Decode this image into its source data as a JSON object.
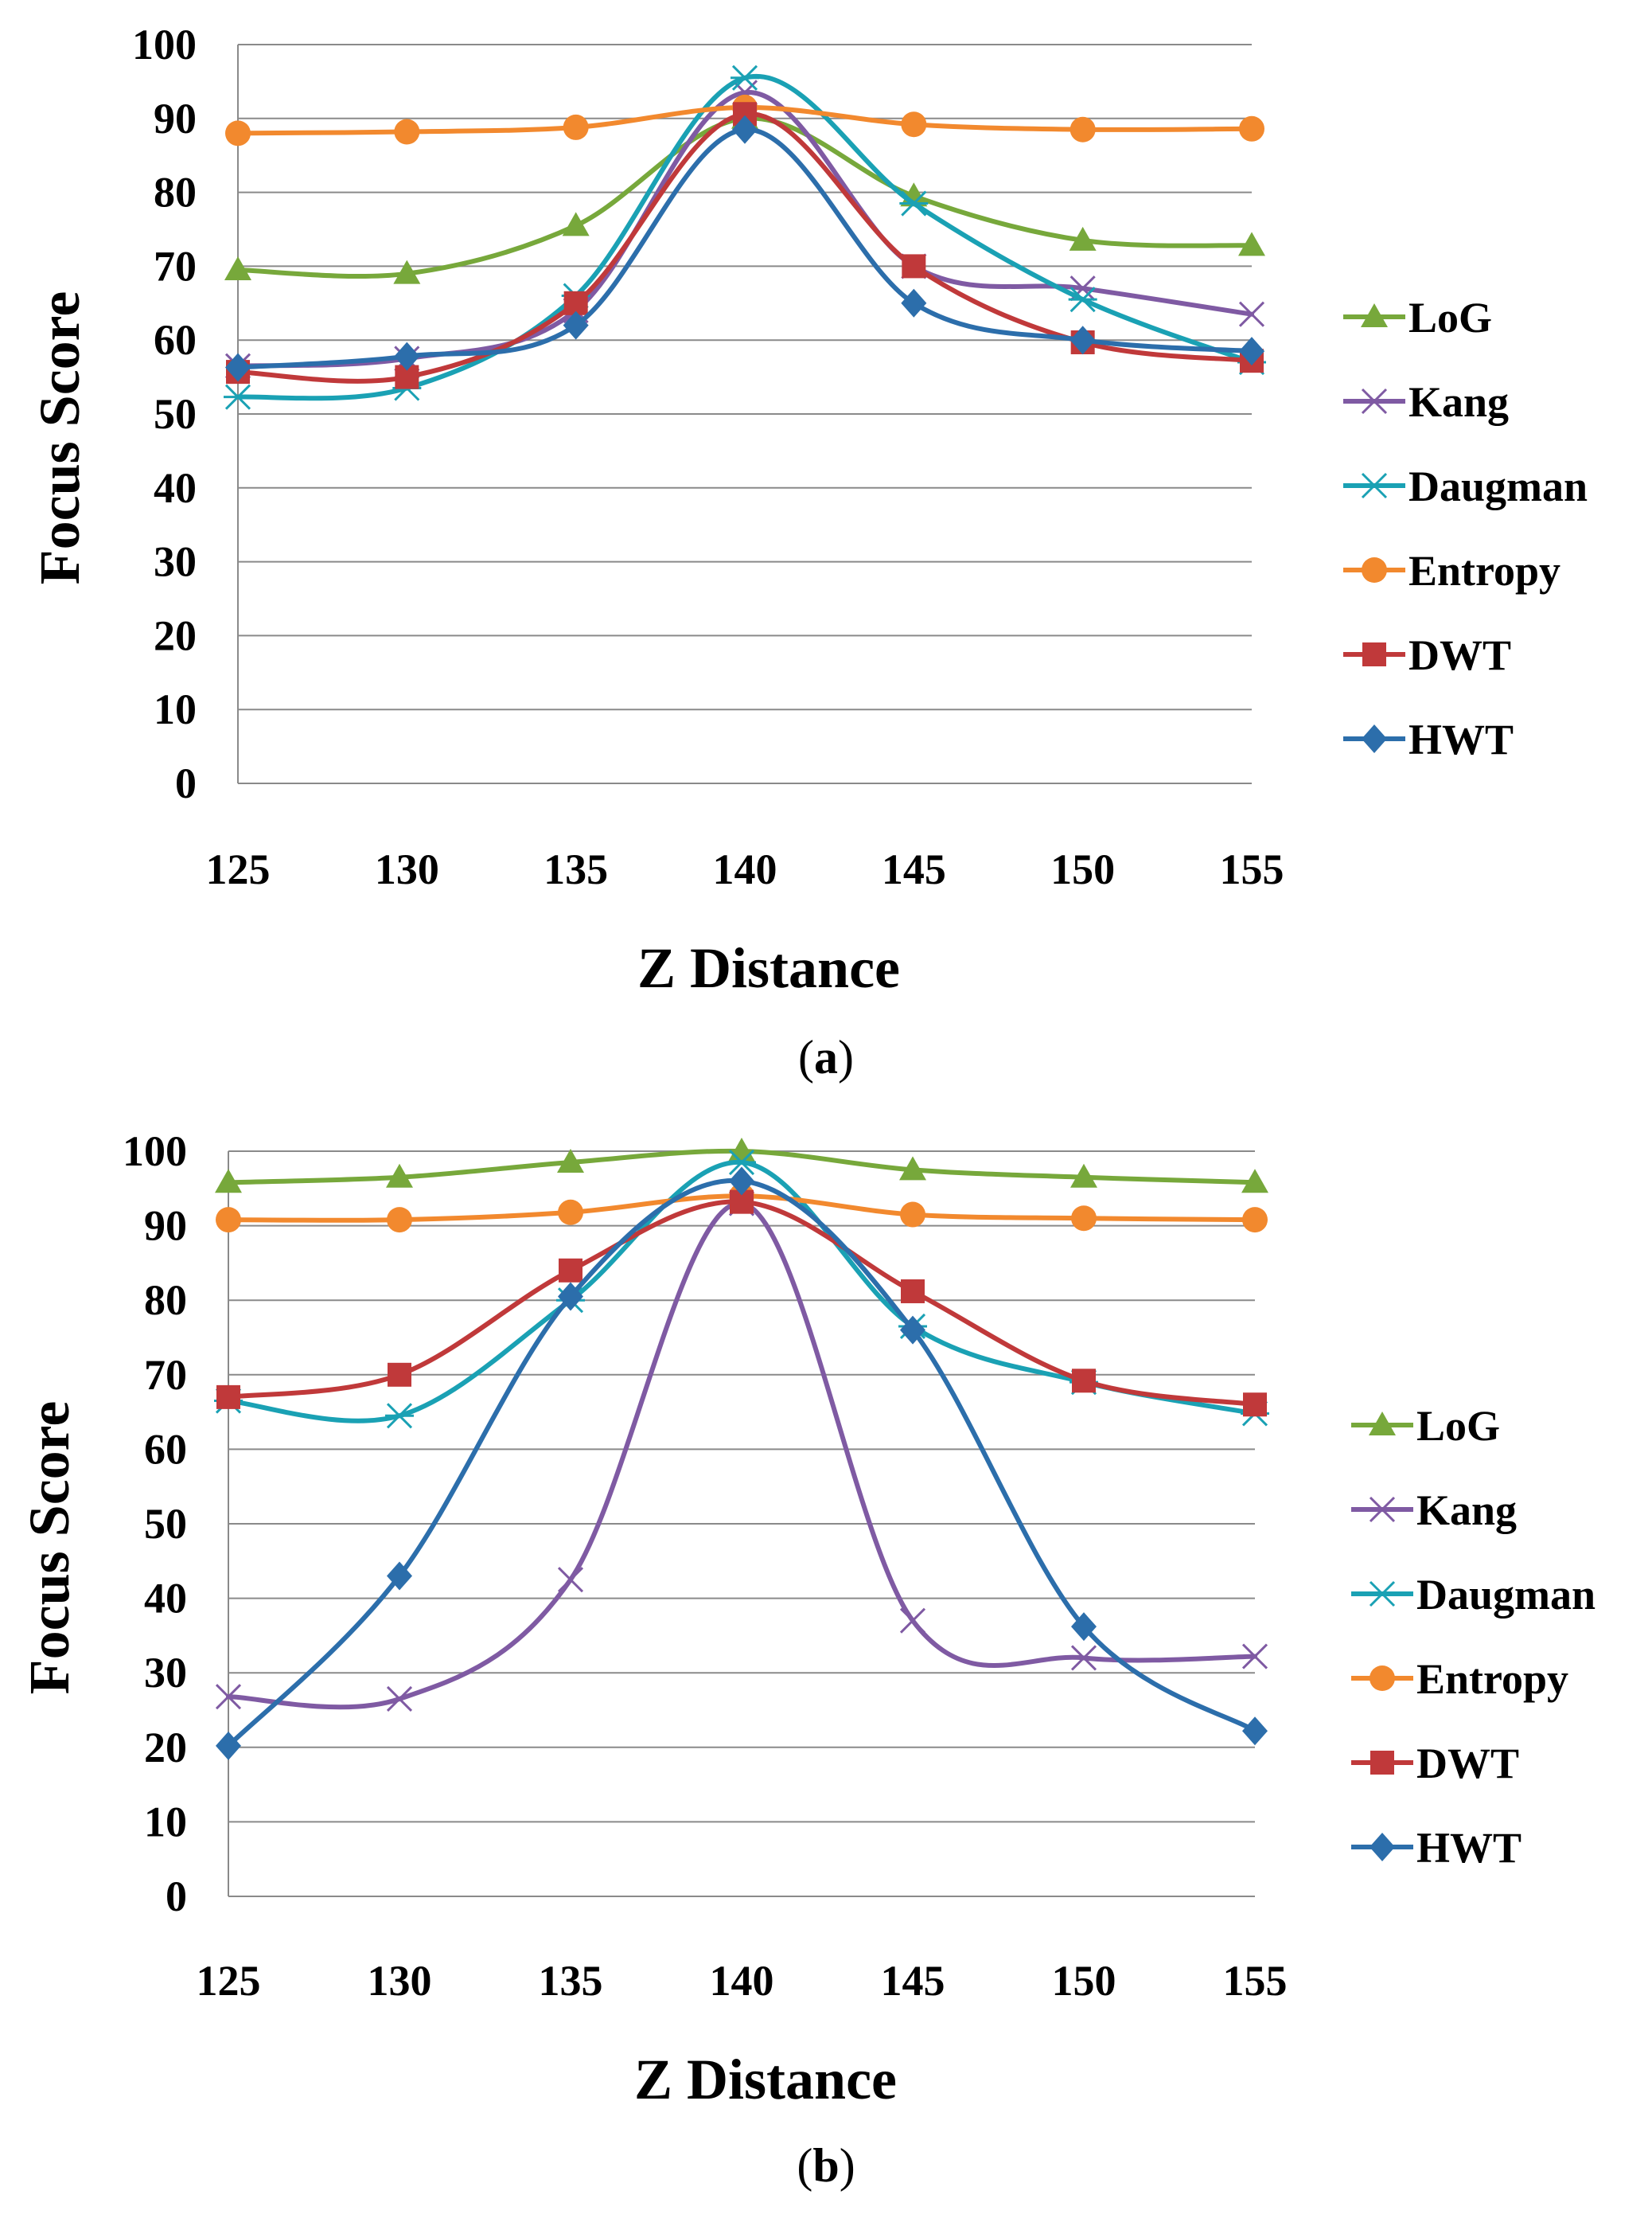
{
  "chart_data": [
    {
      "type": "line",
      "title": "",
      "caption": {
        "open": "(",
        "letter": "a",
        "close": ")"
      },
      "xlabel": "Z Distance",
      "ylabel": "Focus Score",
      "categories": [
        "125",
        "130",
        "135",
        "140",
        "145",
        "150",
        "155"
      ],
      "yticks": [
        "0",
        "10",
        "20",
        "30",
        "40",
        "50",
        "60",
        "70",
        "80",
        "90",
        "100"
      ],
      "ylim": [
        0,
        100
      ],
      "grid": true,
      "legend_position": "right",
      "series": [
        {
          "name": "LoG",
          "color": "#77a83b",
          "marker": "triangle",
          "values": [
            69.5,
            69,
            75.5,
            90,
            79.5,
            73.5,
            72.8
          ]
        },
        {
          "name": "Kang",
          "color": "#7f5aa3",
          "marker": "x",
          "values": [
            56.5,
            57.5,
            64,
            93.5,
            70,
            67,
            63.5
          ]
        },
        {
          "name": "Daugman",
          "color": "#1aa1b4",
          "marker": "star",
          "values": [
            52.3,
            53.5,
            66,
            95.5,
            78.5,
            65.5,
            57
          ]
        },
        {
          "name": "Entropy",
          "color": "#f2892e",
          "marker": "circle",
          "values": [
            88,
            88.2,
            88.8,
            91.5,
            89.2,
            88.5,
            88.6
          ]
        },
        {
          "name": "DWT",
          "color": "#c0393a",
          "marker": "square",
          "values": [
            55.7,
            55,
            65,
            90.6,
            70,
            59.7,
            57.2
          ]
        },
        {
          "name": "HWT",
          "color": "#2c6eab",
          "marker": "diamond",
          "values": [
            56.3,
            57.8,
            62,
            88.5,
            65,
            60,
            58.5
          ]
        }
      ]
    },
    {
      "type": "line",
      "title": "",
      "caption": {
        "open": "(",
        "letter": "b",
        "close": ")"
      },
      "xlabel": "Z Distance",
      "ylabel": "Focus Score",
      "categories": [
        "125",
        "130",
        "135",
        "140",
        "145",
        "150",
        "155"
      ],
      "yticks": [
        "0",
        "10",
        "20",
        "30",
        "40",
        "50",
        "60",
        "70",
        "80",
        "90",
        "100"
      ],
      "ylim": [
        0,
        100
      ],
      "grid": true,
      "legend_position": "right",
      "series": [
        {
          "name": "LoG",
          "color": "#77a83b",
          "marker": "triangle",
          "values": [
            95.8,
            96.5,
            98.5,
            100,
            97.5,
            96.5,
            95.8
          ]
        },
        {
          "name": "Kang",
          "color": "#7f5aa3",
          "marker": "x",
          "values": [
            26.8,
            26.5,
            42.5,
            93,
            37,
            32,
            32.2
          ]
        },
        {
          "name": "Daugman",
          "color": "#1aa1b4",
          "marker": "star",
          "values": [
            66.5,
            64.5,
            80,
            98.5,
            76.5,
            69,
            64.8
          ]
        },
        {
          "name": "Entropy",
          "color": "#f2892e",
          "marker": "circle",
          "values": [
            90.8,
            90.8,
            91.8,
            94,
            91.5,
            91,
            90.8
          ]
        },
        {
          "name": "DWT",
          "color": "#c0393a",
          "marker": "square",
          "values": [
            67,
            70,
            84,
            93.2,
            81.2,
            69.2,
            66
          ]
        },
        {
          "name": "HWT",
          "color": "#2c6eab",
          "marker": "diamond",
          "values": [
            20.2,
            43,
            80.5,
            96,
            76,
            36.2,
            22.2
          ]
        }
      ]
    }
  ]
}
